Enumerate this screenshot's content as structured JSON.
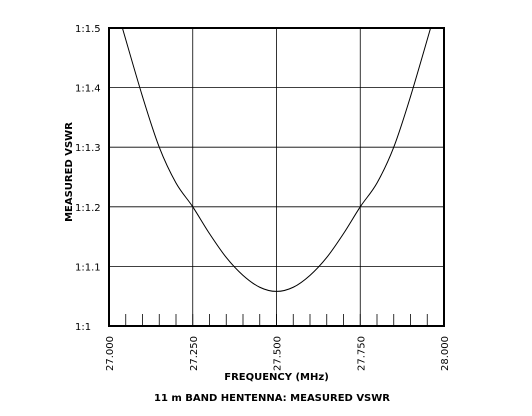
{
  "chart_data": {
    "type": "line",
    "title": "11 m BAND HENTENNA: MEASURED VSWR",
    "xlabel": "FREQUENCY (MHz)",
    "ylabel": "MEASURED VSWR",
    "xlim": [
      27.0,
      28.0
    ],
    "ylim": [
      1.0,
      1.5
    ],
    "x_ticks": [
      27.0,
      27.25,
      27.5,
      27.75,
      28.0
    ],
    "x_tick_labels": [
      "27.000",
      "27.250",
      "27.500",
      "27.750",
      "28.000"
    ],
    "x_minor_tick_step": 0.05,
    "y_ticks": [
      1.0,
      1.1,
      1.2,
      1.3,
      1.4,
      1.5
    ],
    "y_tick_labels": [
      "1:1",
      "1:1.1",
      "1:1.2",
      "1:1.3",
      "1:1.4",
      "1:1.5"
    ],
    "grid": true,
    "series": [
      {
        "x": [
          27.04,
          27.1,
          27.15,
          27.2,
          27.25,
          27.3,
          27.35,
          27.4,
          27.45,
          27.5,
          27.55,
          27.6,
          27.65,
          27.7,
          27.75,
          27.8,
          27.85,
          27.9,
          27.96
        ],
        "values": [
          1.5,
          1.385,
          1.3,
          1.24,
          1.2,
          1.155,
          1.115,
          1.085,
          1.065,
          1.058,
          1.065,
          1.085,
          1.115,
          1.155,
          1.2,
          1.24,
          1.3,
          1.385,
          1.5
        ],
        "color": "#000000"
      }
    ]
  }
}
